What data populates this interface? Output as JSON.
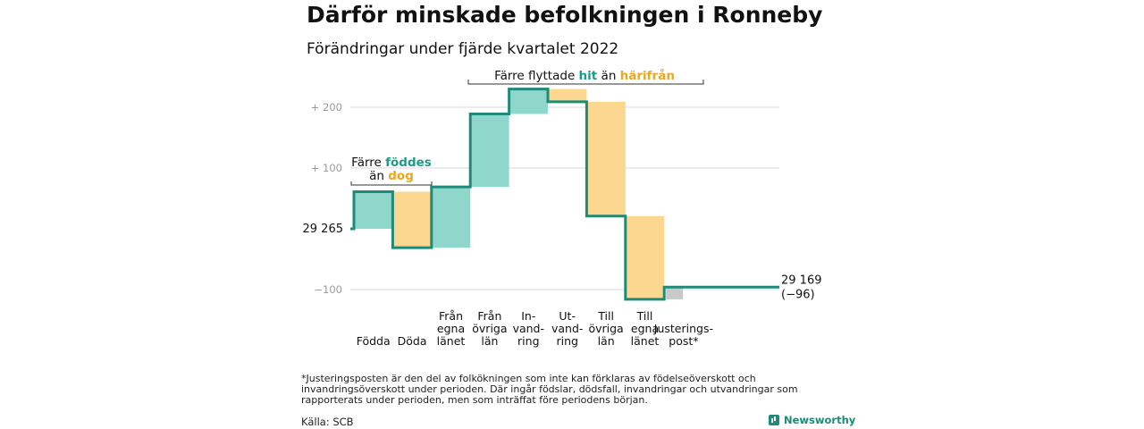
{
  "title": "Därför minskade befolkningen i Ronneby",
  "subtitle": "Förändringar under fjärde kvartalet 2022",
  "chart_data": {
    "type": "waterfall",
    "baseline": 29265,
    "start_label": "29 265",
    "end_label_value": "29 169",
    "end_label_change": "(−96)",
    "yticks": [
      {
        "value": 200,
        "label": "+ 200"
      },
      {
        "value": 100,
        "label": "+ 100"
      },
      {
        "value": -100,
        "label": "−100"
      }
    ],
    "ylim": [
      -130,
      250
    ],
    "steps": [
      {
        "label": [
          "Födda"
        ],
        "value": 61,
        "kind": "in"
      },
      {
        "label": [
          "Döda"
        ],
        "value": -92,
        "kind": "out"
      },
      {
        "label": [
          "Från",
          "egna",
          "länet"
        ],
        "value": 100,
        "kind": "in"
      },
      {
        "label": [
          "Från",
          "övriga",
          "län"
        ],
        "value": 120,
        "kind": "in"
      },
      {
        "label": [
          "In-",
          "vand-",
          "ring"
        ],
        "value": 41,
        "kind": "in"
      },
      {
        "label": [
          "Ut-",
          "vand-",
          "ring"
        ],
        "value": -21,
        "kind": "out"
      },
      {
        "label": [
          "Till",
          "övriga",
          "län"
        ],
        "value": -188,
        "kind": "out"
      },
      {
        "label": [
          "Till",
          "egna",
          "länet"
        ],
        "value": -137,
        "kind": "out"
      },
      {
        "label": [
          "Justerings-",
          "post*"
        ],
        "value": 20,
        "kind": "adjust"
      }
    ],
    "annotations": [
      {
        "prefix": "Färre ",
        "in_word": "föddes",
        "line2_prefix": "än ",
        "out_word": "dog"
      },
      {
        "prefix": "Färre flyttade ",
        "in_word": "hit",
        "mid": " än ",
        "out_word": "härifrån"
      }
    ],
    "colors": {
      "in": "#8fd6cb",
      "out": "#fbd78f",
      "adjust": "#c9c9c9",
      "line": "#1f8a78",
      "in_text": "#1f9a87",
      "out_text": "#e8a724",
      "grid": "#d9d9d9",
      "tick": "#9a9a9a"
    }
  },
  "footnote": "*Justeringsposten är den del av folkökningen som inte kan förklaras av födelseöverskott och invandringsöverskott under perioden. Där ingår födslar, dödsfall, invandringar och utvandringar som rapporterats under perioden, men som inträffat före periodens början.",
  "source": "Källa: SCB",
  "brand": "Newsworthy"
}
